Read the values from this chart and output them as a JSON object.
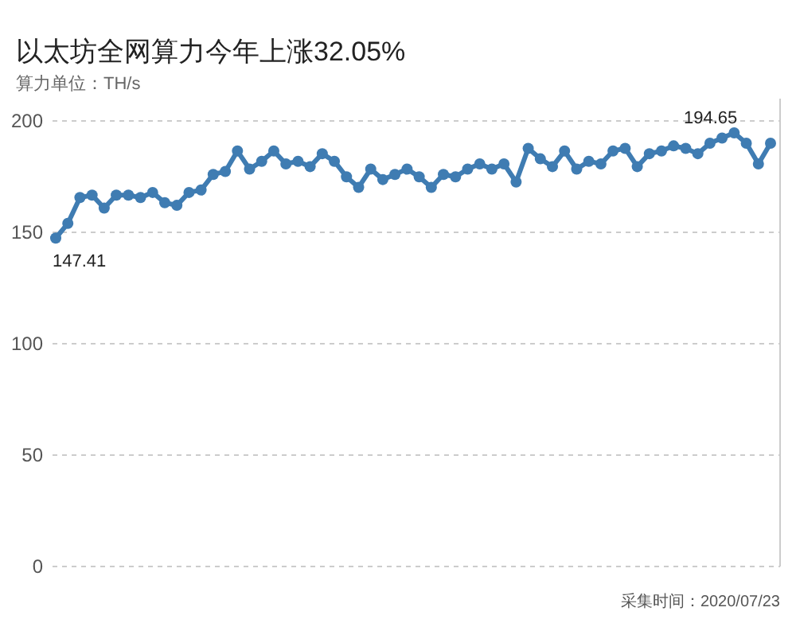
{
  "chart_data": {
    "type": "line",
    "title": "以太坊全网算力今年上涨32.05%",
    "subtitle": "算力单位：TH/s",
    "annotations": [
      "采集时间：2020/07/23"
    ],
    "categories": [
      null,
      null,
      null,
      null,
      null,
      null,
      null,
      null,
      null,
      null,
      null,
      null,
      null,
      null,
      null,
      null,
      null,
      null,
      null,
      null,
      null,
      null,
      null,
      null,
      null,
      null,
      null,
      null,
      null,
      null,
      null,
      null,
      null,
      null,
      null,
      null,
      null,
      null,
      null,
      null,
      null,
      null,
      null,
      null,
      null,
      null,
      null,
      null,
      null,
      null,
      null,
      null,
      null,
      null,
      null,
      null,
      null,
      null,
      null,
      null
    ],
    "series": [
      {
        "color": "#3f7cb2",
        "values": [
          147.41,
          154,
          165.6,
          166.7,
          160.9,
          166.7,
          166.7,
          165.6,
          167.9,
          163.3,
          162.1,
          167.9,
          169,
          176,
          177.3,
          186.5,
          178.4,
          181.9,
          186.5,
          180.7,
          181.9,
          179.5,
          185.3,
          181.9,
          174.9,
          170.2,
          178.4,
          173.7,
          176,
          178.4,
          174.9,
          170.2,
          176,
          174.9,
          178.4,
          180.7,
          178.4,
          180.7,
          172.6,
          187.7,
          183,
          179.5,
          186.5,
          178.4,
          181.9,
          180.7,
          186.5,
          187.7,
          179.5,
          185.3,
          186.5,
          188.8,
          187.7,
          185.3,
          190,
          192.3,
          194.65,
          190,
          180.7,
          190
        ],
        "value_labels": [
          "147.41",
          null,
          null,
          null,
          null,
          null,
          null,
          null,
          null,
          null,
          null,
          null,
          null,
          null,
          null,
          null,
          null,
          null,
          null,
          null,
          null,
          null,
          null,
          null,
          null,
          null,
          null,
          null,
          null,
          null,
          null,
          null,
          null,
          null,
          null,
          null,
          null,
          null,
          null,
          null,
          null,
          null,
          null,
          null,
          null,
          null,
          null,
          null,
          null,
          null,
          null,
          null,
          null,
          null,
          null,
          null,
          "194.65",
          null,
          null,
          null
        ]
      }
    ],
    "ylim": [
      0,
      210
    ],
    "yticks": [
      0,
      50,
      100,
      150,
      200
    ],
    "grid": "y",
    "marker": "circle",
    "line_style": "solid",
    "tick_labels": "y"
  }
}
